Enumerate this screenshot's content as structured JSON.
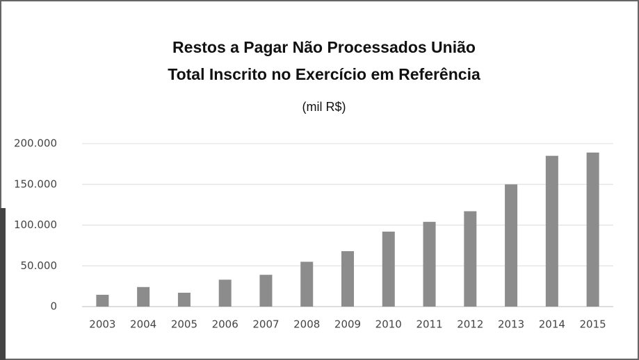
{
  "chart_data": {
    "type": "bar",
    "title": [
      "Restos a Pagar Não Processados União",
      "Total Inscrito no Exercício em Referência"
    ],
    "subtitle": "(mil R$)",
    "categories": [
      "2003",
      "2004",
      "2005",
      "2006",
      "2007",
      "2008",
      "2009",
      "2010",
      "2011",
      "2012",
      "2013",
      "2014",
      "2015"
    ],
    "values": [
      14500,
      24000,
      17000,
      33000,
      39000,
      55000,
      68000,
      92000,
      104000,
      117000,
      150000,
      185000,
      189000
    ],
    "color": "#8c8c8c",
    "ylim": [
      0,
      200000
    ],
    "yticks": [
      0,
      {
        "value": 50000,
        "label": "50.000"
      },
      {
        "value": 100000,
        "label": "100.000"
      },
      {
        "value": 150000,
        "label": "150.000"
      },
      {
        "value": 200000,
        "label": "200.000"
      }
    ],
    "grid": true
  }
}
